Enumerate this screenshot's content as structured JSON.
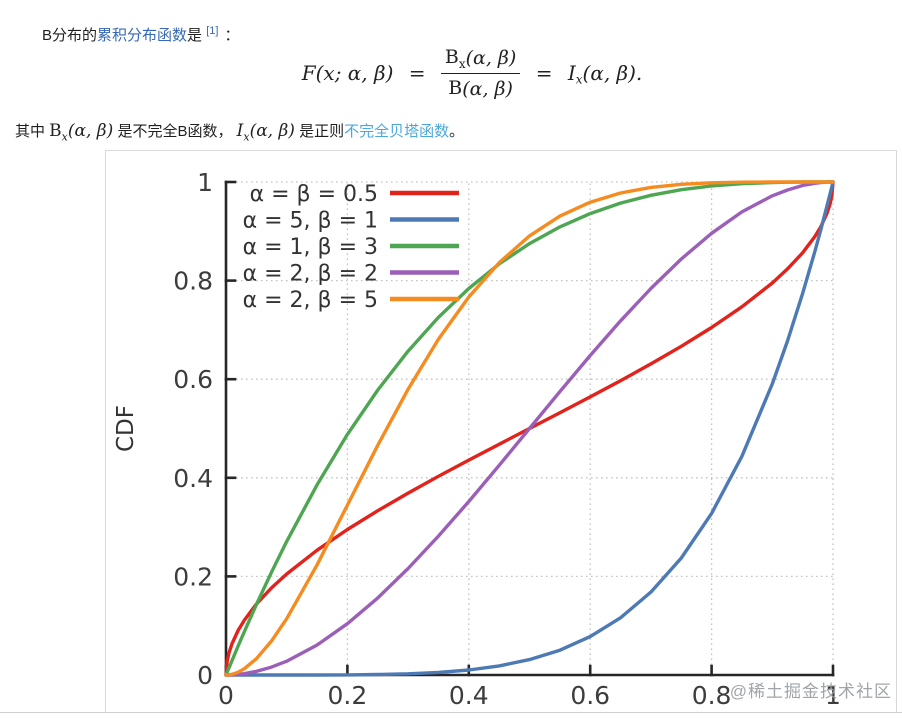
{
  "para1": {
    "prefix": "B分布的",
    "link": "累积分布函数",
    "mid": "是",
    "ref": "[1]",
    "suffix": "："
  },
  "formula": {
    "lhs": "F(x; α, β)",
    "eq1": "=",
    "num_base": "B",
    "num_sub": "x",
    "num_args": "(α, β)",
    "den_base": "B",
    "den_args": "(α, β)",
    "eq2": "=",
    "rhs_base": "I",
    "rhs_sub": "x",
    "rhs_args": "(α, β)."
  },
  "para2": {
    "prefix": "其中 ",
    "bx_base": "B",
    "bx_sub": "x",
    "bx_args": "(α, β)",
    "mid1": " 是不完全B函数， ",
    "ix_base": "I",
    "ix_sub": "x",
    "ix_args": "(α, β)",
    "mid2": " 是正则",
    "link": "不完全贝塔函数",
    "suffix": "。"
  },
  "figure": {
    "watermark": "@稀土掘金技术社区"
  },
  "colors": {
    "link_primary": "#3568b8",
    "link_secondary": "#4aa8dd",
    "axis": "#262626",
    "grid": "#c4c4c4",
    "watermark": "#969ba0"
  },
  "chart_data": {
    "type": "line",
    "title": "",
    "xlabel": "",
    "ylabel": "CDF",
    "xlim": [
      0,
      1
    ],
    "ylim": [
      0,
      1
    ],
    "grid": "dotted",
    "legend_position": "top-left",
    "xticks": [
      "0",
      "0.2",
      "0.4",
      "0.6",
      "0.8",
      "1"
    ],
    "yticks": [
      "0",
      "0.2",
      "0.4",
      "0.6",
      "0.8",
      "1"
    ],
    "x": [
      0,
      0.002,
      0.005,
      0.01,
      0.02,
      0.03,
      0.05,
      0.075,
      0.1,
      0.15,
      0.2,
      0.25,
      0.3,
      0.35,
      0.4,
      0.45,
      0.5,
      0.55,
      0.6,
      0.65,
      0.7,
      0.75,
      0.8,
      0.85,
      0.9,
      0.925,
      0.95,
      0.97,
      0.98,
      0.99,
      0.995,
      0.998,
      1
    ],
    "series": [
      {
        "name": "α = β = 0.5",
        "color": "#e2231b",
        "values": [
          0,
          0.0285,
          0.045,
          0.0638,
          0.0903,
          0.1108,
          0.1436,
          0.1766,
          0.2048,
          0.2532,
          0.2952,
          0.3333,
          0.369,
          0.403,
          0.4359,
          0.4681,
          0.5,
          0.5319,
          0.5641,
          0.597,
          0.631,
          0.6667,
          0.7048,
          0.7468,
          0.7952,
          0.8238,
          0.8564,
          0.8892,
          0.9096,
          0.9362,
          0.9549,
          0.9715,
          1
        ]
      },
      {
        "name": "α = 5, β = 1",
        "color": "#4d79b4",
        "values": [
          0,
          0,
          0,
          0,
          0,
          0,
          0,
          0,
          0,
          0.0001,
          0.0003,
          0.001,
          0.0024,
          0.0053,
          0.0102,
          0.0185,
          0.0313,
          0.0503,
          0.0778,
          0.116,
          0.1681,
          0.2373,
          0.3277,
          0.4437,
          0.5905,
          0.6774,
          0.7738,
          0.8587,
          0.9039,
          0.951,
          0.9752,
          0.99,
          1
        ]
      },
      {
        "name": "α = 1, β = 3",
        "color": "#4ea652",
        "values": [
          0,
          0.006,
          0.0149,
          0.0297,
          0.0588,
          0.0873,
          0.1426,
          0.2085,
          0.271,
          0.3859,
          0.488,
          0.5781,
          0.657,
          0.7254,
          0.784,
          0.8339,
          0.875,
          0.9089,
          0.936,
          0.9571,
          0.973,
          0.9844,
          0.992,
          0.9966,
          0.999,
          0.9996,
          0.9999,
          1,
          1,
          1,
          1,
          1,
          1
        ]
      },
      {
        "name": "α = 2, β = 2",
        "color": "#9c5fb8",
        "values": [
          0,
          0,
          0.0001,
          0.0003,
          0.0012,
          0.0026,
          0.0073,
          0.016,
          0.028,
          0.0608,
          0.104,
          0.1563,
          0.216,
          0.2818,
          0.352,
          0.4253,
          0.5,
          0.5748,
          0.648,
          0.7183,
          0.784,
          0.8438,
          0.896,
          0.9393,
          0.972,
          0.9837,
          0.9928,
          0.9973,
          0.9988,
          0.9997,
          0.9999,
          1,
          1
        ]
      },
      {
        "name": "α = 2, β = 5",
        "color": "#f68b1f",
        "values": [
          0,
          0,
          0.0004,
          0.0015,
          0.0057,
          0.0125,
          0.0328,
          0.0689,
          0.1143,
          0.2235,
          0.3446,
          0.4661,
          0.5798,
          0.6809,
          0.7667,
          0.8364,
          0.8906,
          0.9308,
          0.959,
          0.9777,
          0.9891,
          0.9954,
          0.9984,
          0.9996,
          0.9999,
          1,
          1,
          1,
          1,
          1,
          1,
          1,
          1
        ]
      }
    ]
  }
}
